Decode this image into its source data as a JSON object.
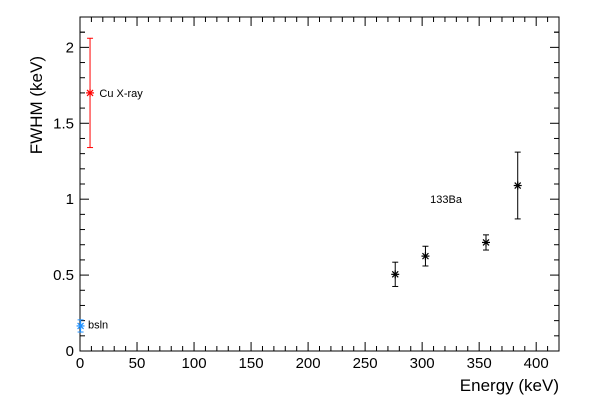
{
  "chart_data": {
    "type": "scatter",
    "title": "",
    "xlabel": "Energy (keV)",
    "ylabel": "FWHM (keV)",
    "xlim": [
      0,
      420
    ],
    "ylim": [
      0,
      2.2
    ],
    "x_ticks": [
      0,
      50,
      100,
      150,
      200,
      250,
      300,
      350,
      400
    ],
    "y_ticks": [
      0,
      0.5,
      1,
      1.5,
      2
    ],
    "y_tick_labels": [
      "0",
      "0.5",
      "1",
      "1.5",
      "2"
    ],
    "grid": false,
    "legend": "none",
    "series": [
      {
        "color": "#ff0000",
        "marker": "asterisk",
        "points": [
          {
            "x": 8.8,
            "y": 1.7,
            "err": 0.36
          }
        ]
      },
      {
        "color": "#1e90ff",
        "marker": "asterisk",
        "points": [
          {
            "x": 0.5,
            "y": 0.165,
            "err": 0.04
          }
        ]
      },
      {
        "color": "#000000",
        "marker": "asterisk",
        "points": [
          {
            "x": 276.4,
            "y": 0.505,
            "err": 0.08
          },
          {
            "x": 302.9,
            "y": 0.625,
            "err": 0.065
          },
          {
            "x": 356.0,
            "y": 0.715,
            "err": 0.05
          },
          {
            "x": 383.8,
            "y": 1.09,
            "err": 0.22
          }
        ]
      }
    ],
    "annotations": [
      {
        "text": "Cu X-ray",
        "x": 17,
        "y": 1.7
      },
      {
        "text": "bsln",
        "x": 7,
        "y": 0.175
      },
      {
        "text": "133Ba",
        "x": 307,
        "y": 1.0
      }
    ]
  }
}
